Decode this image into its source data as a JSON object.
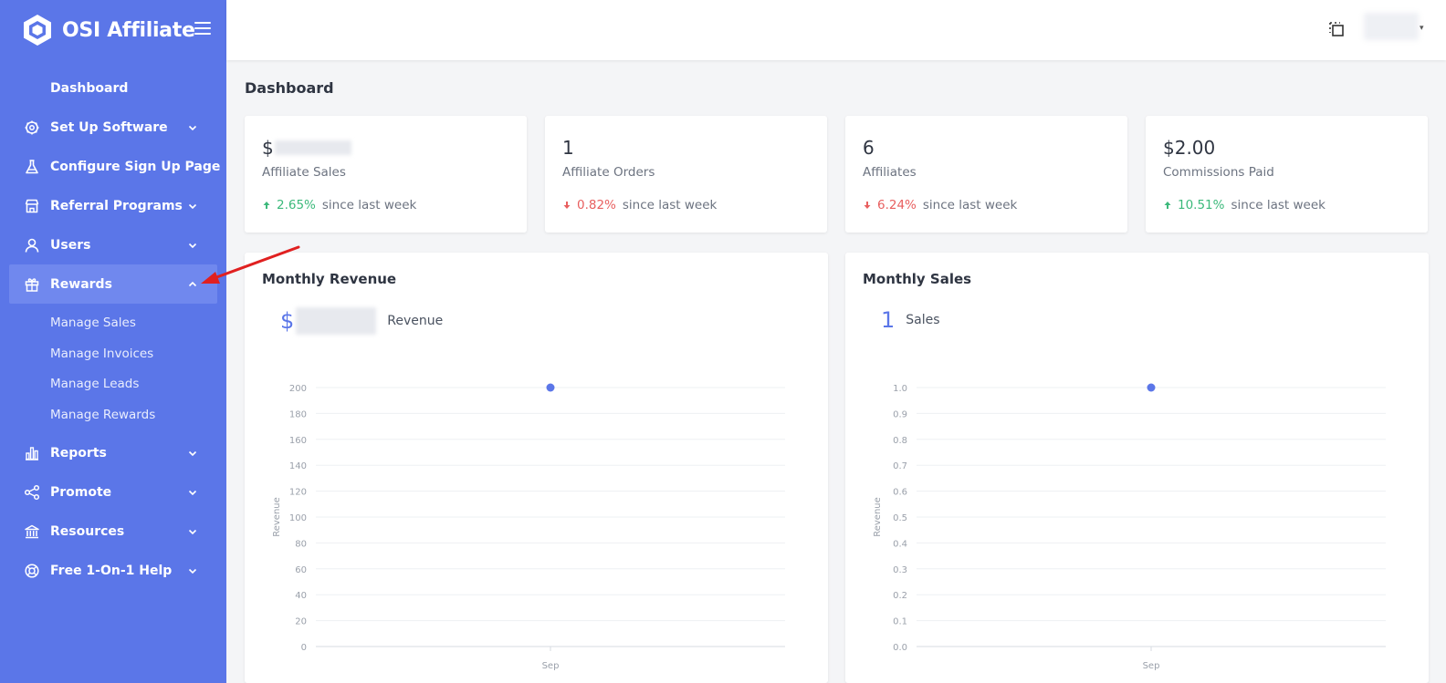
{
  "app": {
    "name": "OSI Affiliate"
  },
  "sidebar": {
    "dashboard_label": "Dashboard",
    "items": [
      {
        "label": "Set Up Software",
        "icon": "gear-icon"
      },
      {
        "label": "Configure Sign Up Page",
        "icon": "flask-icon"
      },
      {
        "label": "Referral Programs",
        "icon": "store-icon"
      },
      {
        "label": "Users",
        "icon": "user-icon"
      },
      {
        "label": "Rewards",
        "icon": "gift-icon"
      },
      {
        "label": "Reports",
        "icon": "bar-chart-icon"
      },
      {
        "label": "Promote",
        "icon": "share-icon"
      },
      {
        "label": "Resources",
        "icon": "bank-icon"
      },
      {
        "label": "Free 1-On-1 Help",
        "icon": "lifebuoy-icon"
      }
    ],
    "rewards_sub": [
      {
        "label": "Manage Sales"
      },
      {
        "label": "Manage Invoices"
      },
      {
        "label": "Manage Leads"
      },
      {
        "label": "Manage Rewards"
      }
    ]
  },
  "page": {
    "title": "Dashboard"
  },
  "stats": [
    {
      "value": "$",
      "label": "Affiliate Sales",
      "change": "2.65%",
      "direction": "up",
      "suffix": "since last week"
    },
    {
      "value": "1",
      "label": "Affiliate Orders",
      "change": "0.82%",
      "direction": "down",
      "suffix": "since last week"
    },
    {
      "value": "6",
      "label": "Affiliates",
      "change": "6.24%",
      "direction": "down",
      "suffix": "since last week"
    },
    {
      "value": "$2.00",
      "label": "Commissions Paid",
      "change": "10.51%",
      "direction": "up",
      "suffix": "since last week"
    }
  ],
  "charts": {
    "revenue": {
      "title": "Monthly Revenue",
      "big_prefix": "$",
      "big_unit": "Revenue"
    },
    "sales": {
      "title": "Monthly Sales",
      "big_value": "1",
      "big_unit": "Sales"
    }
  },
  "chart_data": [
    {
      "type": "scatter",
      "title": "Monthly Revenue",
      "ylabel": "Revenue",
      "xlabel": "",
      "categories": [
        "Sep"
      ],
      "yticks": [
        "0",
        "20",
        "40",
        "60",
        "80",
        "100",
        "120",
        "140",
        "160",
        "180",
        "200"
      ],
      "ylim": [
        0,
        200
      ],
      "values": [
        200
      ],
      "color": "#5b76e8",
      "grid": true
    },
    {
      "type": "scatter",
      "title": "Monthly Sales",
      "ylabel": "Revenue",
      "xlabel": "",
      "categories": [
        "Sep"
      ],
      "yticks": [
        "0.0",
        "0.1",
        "0.2",
        "0.3",
        "0.4",
        "0.5",
        "0.6",
        "0.7",
        "0.8",
        "0.9",
        "1.0"
      ],
      "ylim": [
        0,
        1
      ],
      "values": [
        1
      ],
      "color": "#5b76e8",
      "grid": true
    }
  ],
  "colors": {
    "sidebar": "#5b76e8",
    "up": "#3cb97b",
    "down": "#e85f5f",
    "annotation": "#e02020"
  }
}
